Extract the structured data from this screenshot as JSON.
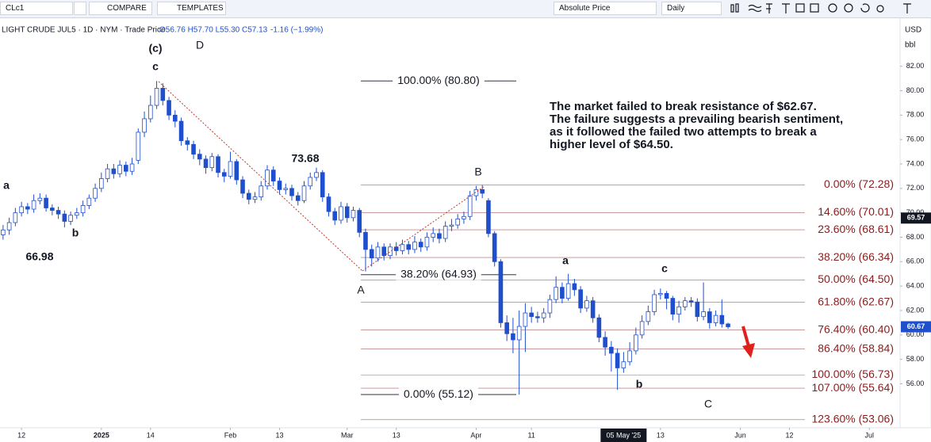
{
  "toolbar": {
    "symbol": "CLc1",
    "compare": "COMPARE",
    "templates": "TEMPLATES",
    "price_mode": "Absolute Price",
    "interval": "Daily"
  },
  "legend": {
    "symbol": "LIGHT CRUDE JUL5 · 1D · NYM · Trade Price",
    "ohlc": "O56.76 H57.70 L55.30 C57.13",
    "change": "-1.16 (−1.99%)"
  },
  "chart_data": {
    "type": "candlestick",
    "currency": "USD",
    "unit": "bbl",
    "up_color": "#ffffff",
    "down_color": "#1f4fcc",
    "edge_color": "#1f4fcc",
    "xlim": [
      -0.5,
      146
    ],
    "xticks": [
      {
        "value": 3,
        "label": "12"
      },
      {
        "value": 16,
        "label": "2025"
      },
      {
        "value": 24,
        "label": "14"
      },
      {
        "value": 37,
        "label": "Feb"
      },
      {
        "value": 45,
        "label": "13"
      },
      {
        "value": 56,
        "label": "Mar"
      },
      {
        "value": 64,
        "label": "13"
      },
      {
        "value": 77,
        "label": "Apr"
      },
      {
        "value": 86,
        "label": "11"
      },
      {
        "value": 107,
        "label": "13"
      },
      {
        "value": 120,
        "label": "Jun"
      },
      {
        "value": 128,
        "label": "12"
      },
      {
        "value": 141,
        "label": "Jul"
      }
    ],
    "crosshair_x": {
      "value": 101,
      "label": "05 May '25"
    },
    "ylim": [
      52.4,
      86.0
    ],
    "yticks": [
      {
        "value": 56,
        "label": "56.00"
      },
      {
        "value": 58,
        "label": "58.00"
      },
      {
        "value": 60,
        "label": "60.00"
      },
      {
        "value": 62,
        "label": "62.00"
      },
      {
        "value": 64,
        "label": "64.00"
      },
      {
        "value": 66,
        "label": "66.00"
      },
      {
        "value": 68,
        "label": "68.00"
      },
      {
        "value": 70,
        "label": "70.00"
      },
      {
        "value": 72,
        "label": "72.00"
      },
      {
        "value": 74,
        "label": "74.00"
      },
      {
        "value": 76,
        "label": "76.00"
      },
      {
        "value": 78,
        "label": "78.00"
      },
      {
        "value": 80,
        "label": "80.00"
      },
      {
        "value": 82,
        "label": "82.00"
      }
    ],
    "price_badges": [
      {
        "value": 69.57,
        "color": "#131722"
      },
      {
        "value": 60.67,
        "color": "#1f4fcc"
      }
    ],
    "open": [
      68.2,
      68.6,
      69.2,
      70.0,
      70.5,
      70.3,
      71.0,
      71.2,
      70.4,
      70.2,
      69.9,
      69.3,
      69.8,
      70.0,
      70.6,
      71.2,
      72.0,
      72.8,
      73.6,
      73.2,
      73.9,
      73.4,
      74.3,
      76.6,
      77.7,
      78.8,
      80.2,
      79.2,
      78.0,
      77.5,
      75.9,
      75.6,
      74.8,
      74.4,
      73.7,
      74.6,
      73.3,
      73.0,
      74.2,
      72.7,
      71.6,
      71.1,
      71.3,
      72.2,
      73.5,
      72.6,
      71.9,
      72.0,
      71.4,
      71.0,
      72.2,
      72.9,
      73.3,
      71.3,
      70.1,
      69.4,
      70.5,
      69.6,
      70.2,
      68.4,
      67.0,
      66.3,
      67.2,
      66.5,
      67.2,
      66.9,
      67.4,
      67.0,
      67.6,
      67.2,
      68.0,
      68.3,
      67.9,
      68.9,
      69.0,
      69.5,
      69.7,
      71.4,
      71.9,
      71.0,
      68.3,
      66.0,
      61.0,
      60.1,
      59.6,
      60.7,
      61.8,
      61.5,
      61.4,
      61.8,
      62.9,
      63.9,
      63.0,
      64.2,
      63.7,
      62.2,
      62.8,
      61.4,
      59.8,
      59.0,
      58.5,
      57.3,
      57.8,
      58.7,
      60.0,
      61.1,
      61.9,
      63.3,
      63.4,
      63.0,
      61.7,
      62.3,
      62.8,
      62.7,
      61.5,
      61.9,
      61.0,
      61.6,
      60.9
    ],
    "high": [
      69.0,
      69.6,
      70.4,
      70.9,
      70.8,
      71.5,
      71.6,
      71.5,
      70.7,
      70.5,
      70.2,
      70.1,
      70.4,
      71.0,
      71.5,
      72.4,
      73.3,
      74.0,
      74.0,
      74.3,
      74.2,
      74.5,
      76.9,
      78.3,
      79.6,
      80.8,
      80.6,
      79.5,
      78.4,
      77.8,
      76.2,
      75.9,
      75.2,
      74.7,
      74.9,
      74.8,
      73.6,
      75.0,
      74.4,
      73.0,
      71.9,
      71.7,
      72.6,
      73.9,
      73.8,
      72.9,
      72.4,
      72.3,
      71.7,
      72.6,
      73.3,
      73.7,
      73.5,
      71.6,
      70.4,
      70.9,
      70.8,
      70.5,
      70.4,
      68.7,
      67.4,
      67.6,
      67.5,
      67.5,
      67.6,
      67.8,
      67.7,
      68.1,
      67.9,
      68.4,
      68.8,
      68.7,
      69.3,
      69.5,
      69.9,
      70.1,
      71.8,
      72.2,
      72.28,
      71.2,
      68.5,
      66.2,
      61.6,
      61.4,
      62.0,
      62.6,
      62.3,
      61.9,
      62.2,
      63.3,
      64.8,
      64.3,
      65.0,
      64.6,
      64.0,
      63.2,
      63.1,
      61.7,
      60.3,
      59.5,
      58.9,
      58.6,
      59.4,
      60.6,
      61.6,
      62.4,
      63.7,
      63.8,
      63.6,
      63.2,
      62.8,
      63.1,
      63.1,
      63.0,
      64.3,
      62.2,
      62.0,
      62.9,
      61.0
    ],
    "low": [
      67.8,
      68.2,
      68.9,
      69.7,
      69.9,
      70.0,
      70.7,
      70.1,
      69.8,
      69.5,
      68.8,
      69.0,
      69.5,
      69.7,
      70.3,
      70.9,
      71.7,
      72.5,
      72.8,
      72.9,
      73.0,
      73.1,
      74.0,
      76.2,
      77.4,
      78.5,
      78.8,
      77.6,
      77.0,
      75.5,
      75.1,
      74.4,
      73.9,
      73.2,
      73.4,
      72.9,
      72.5,
      72.8,
      72.3,
      71.2,
      70.7,
      70.8,
      71.0,
      71.9,
      72.2,
      71.5,
      71.5,
      71.0,
      70.6,
      70.8,
      71.9,
      72.6,
      70.9,
      69.7,
      69.0,
      69.1,
      69.2,
      69.3,
      68.0,
      65.2,
      65.6,
      66.0,
      66.1,
      66.2,
      66.5,
      66.6,
      66.6,
      66.7,
      66.8,
      66.9,
      67.6,
      67.5,
      67.6,
      68.5,
      68.7,
      69.1,
      69.4,
      71.0,
      71.2,
      68.0,
      65.6,
      60.6,
      59.5,
      58.5,
      55.12,
      58.6,
      61.0,
      61.0,
      61.0,
      61.4,
      62.6,
      62.6,
      62.8,
      63.2,
      61.8,
      61.9,
      61.0,
      59.4,
      58.3,
      57.0,
      55.5,
      56.9,
      57.5,
      58.4,
      59.7,
      60.8,
      61.6,
      62.9,
      62.1,
      61.2,
      61.0,
      62.0,
      62.3,
      61.1,
      61.2,
      60.5,
      60.7,
      60.6,
      60.5
    ],
    "close": [
      68.6,
      69.2,
      70.0,
      70.5,
      70.3,
      71.0,
      71.2,
      70.4,
      70.2,
      69.9,
      69.3,
      69.8,
      70.0,
      70.6,
      71.2,
      72.0,
      72.8,
      73.6,
      73.2,
      73.9,
      73.4,
      74.0,
      76.6,
      77.7,
      78.8,
      80.2,
      79.2,
      78.0,
      77.5,
      75.9,
      75.6,
      74.8,
      74.4,
      73.7,
      74.6,
      73.3,
      73.0,
      74.2,
      72.7,
      71.6,
      71.1,
      71.3,
      72.2,
      73.5,
      72.6,
      71.9,
      72.0,
      71.4,
      71.0,
      72.2,
      72.9,
      73.3,
      71.3,
      70.1,
      69.4,
      70.5,
      69.6,
      70.2,
      68.4,
      67.0,
      66.3,
      67.2,
      66.5,
      67.2,
      66.9,
      67.4,
      67.0,
      67.6,
      67.2,
      68.0,
      68.3,
      67.9,
      68.9,
      69.0,
      69.5,
      69.7,
      71.4,
      71.9,
      71.6,
      68.3,
      66.0,
      61.0,
      60.1,
      59.6,
      60.7,
      61.8,
      61.5,
      61.4,
      61.8,
      62.9,
      63.9,
      63.0,
      64.2,
      63.7,
      62.2,
      62.8,
      61.4,
      59.8,
      59.0,
      58.5,
      57.3,
      57.8,
      58.7,
      60.0,
      61.1,
      61.9,
      63.3,
      63.4,
      63.0,
      61.7,
      62.3,
      62.8,
      62.7,
      61.5,
      61.9,
      61.0,
      61.6,
      60.9,
      60.67
    ],
    "fib_color": "#8b1c1c",
    "fib_levels": [
      {
        "value": 72.28,
        "label": "0.00% (72.28)"
      },
      {
        "value": 70.01,
        "label": "14.60% (70.01)"
      },
      {
        "value": 68.61,
        "label": "23.60% (68.61)"
      },
      {
        "value": 66.34,
        "label": "38.20% (66.34)"
      },
      {
        "value": 64.5,
        "label": "50.00% (64.50)"
      },
      {
        "value": 62.67,
        "label": "61.80% (62.67)"
      },
      {
        "value": 60.4,
        "label": "76.40% (60.40)"
      },
      {
        "value": 58.84,
        "label": "86.40% (58.84)"
      },
      {
        "value": 56.73,
        "label": "100.00% (56.73)"
      },
      {
        "value": 55.64,
        "label": "107.00% (55.64)"
      },
      {
        "value": 53.06,
        "label": "123.60% (53.06)"
      }
    ],
    "fib_tool": [
      {
        "value": 80.8,
        "label": "100.00% (80.80)"
      },
      {
        "value": 64.93,
        "label": "38.20% (64.93)"
      },
      {
        "value": 55.12,
        "label": "0.00% (55.12)"
      }
    ],
    "wave_labels": [
      "(c)",
      "D",
      "c",
      "a",
      "b",
      "66.98",
      "73.68",
      "A",
      "B",
      "a",
      "b",
      "c",
      "C"
    ],
    "annotation": [
      "The market failed to break resistance of $62.67.",
      "The failure suggests a prevailing bearish sentiment,",
      "as it followed the failed two attempts to break a",
      "higher level of $64.50."
    ]
  }
}
